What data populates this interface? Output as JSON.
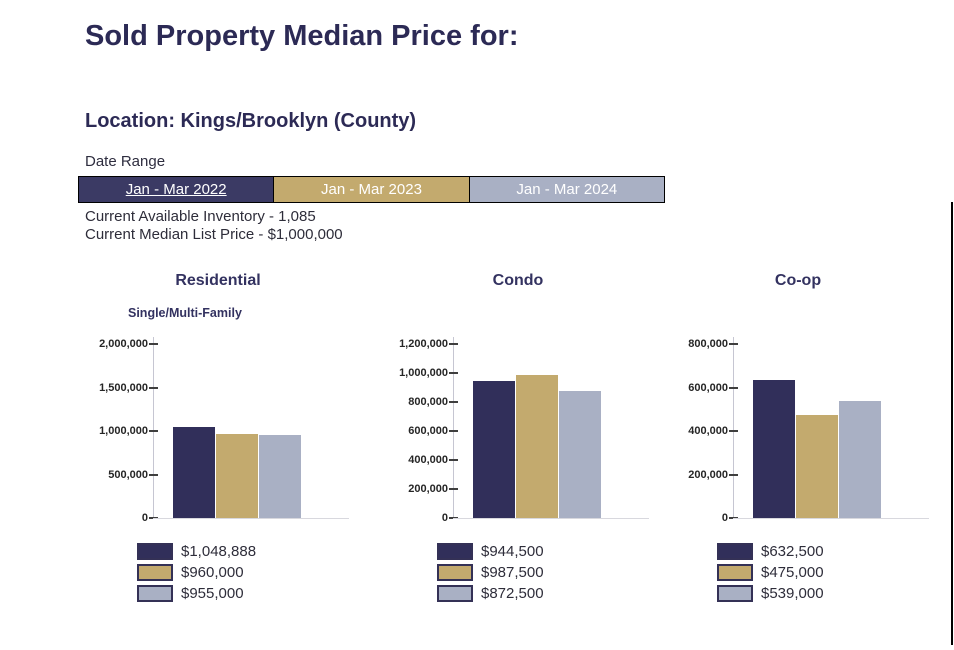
{
  "page": {
    "title": "Sold Property Median Price for:",
    "location": "Location: Kings/Brooklyn (County)",
    "date_range_label": "Date Range",
    "inventory_line": "Current Available Inventory - 1,085",
    "median_list_line": "Current Median List Price - $1,000,000"
  },
  "date_tabs": [
    {
      "label": "Jan - Mar 2022",
      "color": "#3b3a64",
      "text_color": "#ffffff",
      "selected": true
    },
    {
      "label": "Jan - Mar 2023",
      "color": "#c3aa6e",
      "text_color": "#ffffff",
      "selected": false
    },
    {
      "label": "Jan - Mar 2024",
      "color": "#a9b0c4",
      "text_color": "#ffffff",
      "selected": false
    }
  ],
  "series_colors": [
    "#312f5a",
    "#c3aa6e",
    "#a9b0c4"
  ],
  "chart_data": [
    {
      "type": "bar",
      "title": "Residential",
      "subtitle": "Single/Multi-Family",
      "categories": [
        "Jan - Mar 2022",
        "Jan - Mar 2023",
        "Jan - Mar 2024"
      ],
      "values": [
        1048888,
        960000,
        955000
      ],
      "legend": [
        "$1,048,888",
        "$960,000",
        "$955,000"
      ],
      "ylabel": "",
      "xlabel": "",
      "ylim": [
        0,
        2000000
      ],
      "yticks": [
        "2,000,000",
        "1,500,000",
        "1,000,000",
        "500,000",
        "0"
      ],
      "grid": false,
      "legend_position": "bottom"
    },
    {
      "type": "bar",
      "title": "Condo",
      "subtitle": "",
      "categories": [
        "Jan - Mar 2022",
        "Jan - Mar 2023",
        "Jan - Mar 2024"
      ],
      "values": [
        944500,
        987500,
        872500
      ],
      "legend": [
        "$944,500",
        "$987,500",
        "$872,500"
      ],
      "ylabel": "",
      "xlabel": "",
      "ylim": [
        0,
        1200000
      ],
      "yticks": [
        "1,200,000",
        "1,000,000",
        "800,000",
        "600,000",
        "400,000",
        "200,000",
        "0"
      ],
      "grid": false,
      "legend_position": "bottom"
    },
    {
      "type": "bar",
      "title": "Co-op",
      "subtitle": "",
      "categories": [
        "Jan - Mar 2022",
        "Jan - Mar 2023",
        "Jan - Mar 2024"
      ],
      "values": [
        632500,
        475000,
        539000
      ],
      "legend": [
        "$632,500",
        "$475,000",
        "$539,000"
      ],
      "ylabel": "",
      "xlabel": "",
      "ylim": [
        0,
        800000
      ],
      "yticks": [
        "800,000",
        "600,000",
        "400,000",
        "200,000",
        "0"
      ],
      "grid": false,
      "legend_position": "bottom"
    }
  ]
}
